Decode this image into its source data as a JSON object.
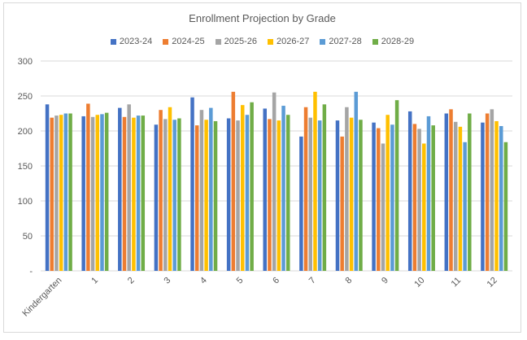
{
  "chart_data": {
    "type": "bar",
    "title": "Enrollment Projection by Grade",
    "xlabel": "",
    "ylabel": "",
    "ylim": [
      0,
      300
    ],
    "y_ticks": [
      "-",
      "50",
      "100",
      "150",
      "200",
      "250",
      "300"
    ],
    "grid": true,
    "legend_position": "top",
    "categories": [
      "Kindergarten",
      "1",
      "2",
      "3",
      "4",
      "5",
      "6",
      "7",
      "8",
      "9",
      "10",
      "11",
      "12"
    ],
    "series": [
      {
        "name": "2023-24",
        "color": "#4472C4",
        "values": [
          238,
          221,
          233,
          209,
          248,
          218,
          232,
          192,
          215,
          212,
          228,
          225,
          212
        ]
      },
      {
        "name": "2024-25",
        "color": "#ED7D31",
        "values": [
          219,
          239,
          220,
          230,
          208,
          256,
          217,
          234,
          192,
          204,
          210,
          231,
          225
        ]
      },
      {
        "name": "2025-26",
        "color": "#A5A5A5",
        "values": [
          222,
          220,
          238,
          217,
          230,
          215,
          255,
          219,
          234,
          182,
          203,
          213,
          231
        ]
      },
      {
        "name": "2026-27",
        "color": "#FFC000",
        "values": [
          223,
          223,
          219,
          234,
          216,
          237,
          215,
          256,
          219,
          223,
          182,
          206,
          214
        ]
      },
      {
        "name": "2027-28",
        "color": "#5B9BD5",
        "values": [
          225,
          224,
          222,
          216,
          233,
          223,
          236,
          215,
          256,
          209,
          221,
          184,
          207
        ]
      },
      {
        "name": "2028-29",
        "color": "#70AD47",
        "values": [
          225,
          226,
          222,
          218,
          214,
          241,
          223,
          238,
          216,
          244,
          208,
          225,
          184
        ]
      }
    ]
  }
}
